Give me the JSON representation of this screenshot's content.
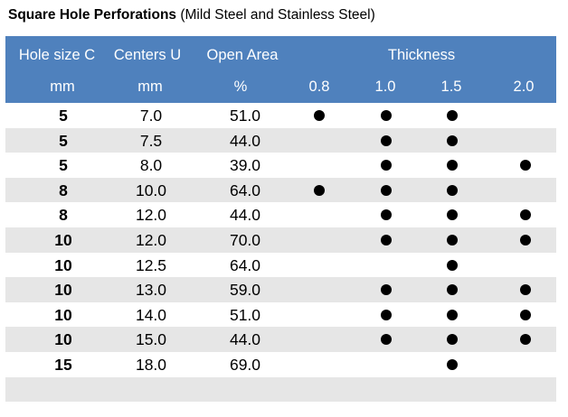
{
  "title": {
    "bold": "Square Hole Perforations",
    "rest": " (Mild Steel and Stainless Steel)"
  },
  "header": {
    "hole_size": "Hole size C",
    "centers": "Centers U",
    "open_area": "Open Area",
    "thickness": "Thickness",
    "hole_unit": "mm",
    "centers_unit": "mm",
    "open_area_unit": "%",
    "thickness_values": [
      "0.8",
      "1.0",
      "1.5",
      "2.0"
    ]
  },
  "rows": [
    {
      "hole": "5",
      "centers": "7.0",
      "open_area": "51.0",
      "avail": [
        true,
        true,
        true,
        false
      ]
    },
    {
      "hole": "5",
      "centers": "7.5",
      "open_area": "44.0",
      "avail": [
        false,
        true,
        true,
        false
      ]
    },
    {
      "hole": "5",
      "centers": "8.0",
      "open_area": "39.0",
      "avail": [
        false,
        true,
        true,
        true
      ]
    },
    {
      "hole": "8",
      "centers": "10.0",
      "open_area": "64.0",
      "avail": [
        true,
        true,
        true,
        false
      ]
    },
    {
      "hole": "8",
      "centers": "12.0",
      "open_area": "44.0",
      "avail": [
        false,
        true,
        true,
        true
      ]
    },
    {
      "hole": "10",
      "centers": "12.0",
      "open_area": "70.0",
      "avail": [
        false,
        true,
        true,
        true
      ]
    },
    {
      "hole": "10",
      "centers": "12.5",
      "open_area": "64.0",
      "avail": [
        false,
        false,
        true,
        false
      ]
    },
    {
      "hole": "10",
      "centers": "13.0",
      "open_area": "59.0",
      "avail": [
        false,
        true,
        true,
        true
      ]
    },
    {
      "hole": "10",
      "centers": "14.0",
      "open_area": "51.0",
      "avail": [
        false,
        true,
        true,
        true
      ]
    },
    {
      "hole": "10",
      "centers": "15.0",
      "open_area": "44.0",
      "avail": [
        false,
        true,
        true,
        true
      ]
    },
    {
      "hole": "15",
      "centers": "18.0",
      "open_area": "69.0",
      "avail": [
        false,
        false,
        true,
        false
      ]
    },
    {
      "hole": "",
      "centers": "",
      "open_area": "",
      "avail": [
        false,
        false,
        false,
        false
      ]
    }
  ]
}
